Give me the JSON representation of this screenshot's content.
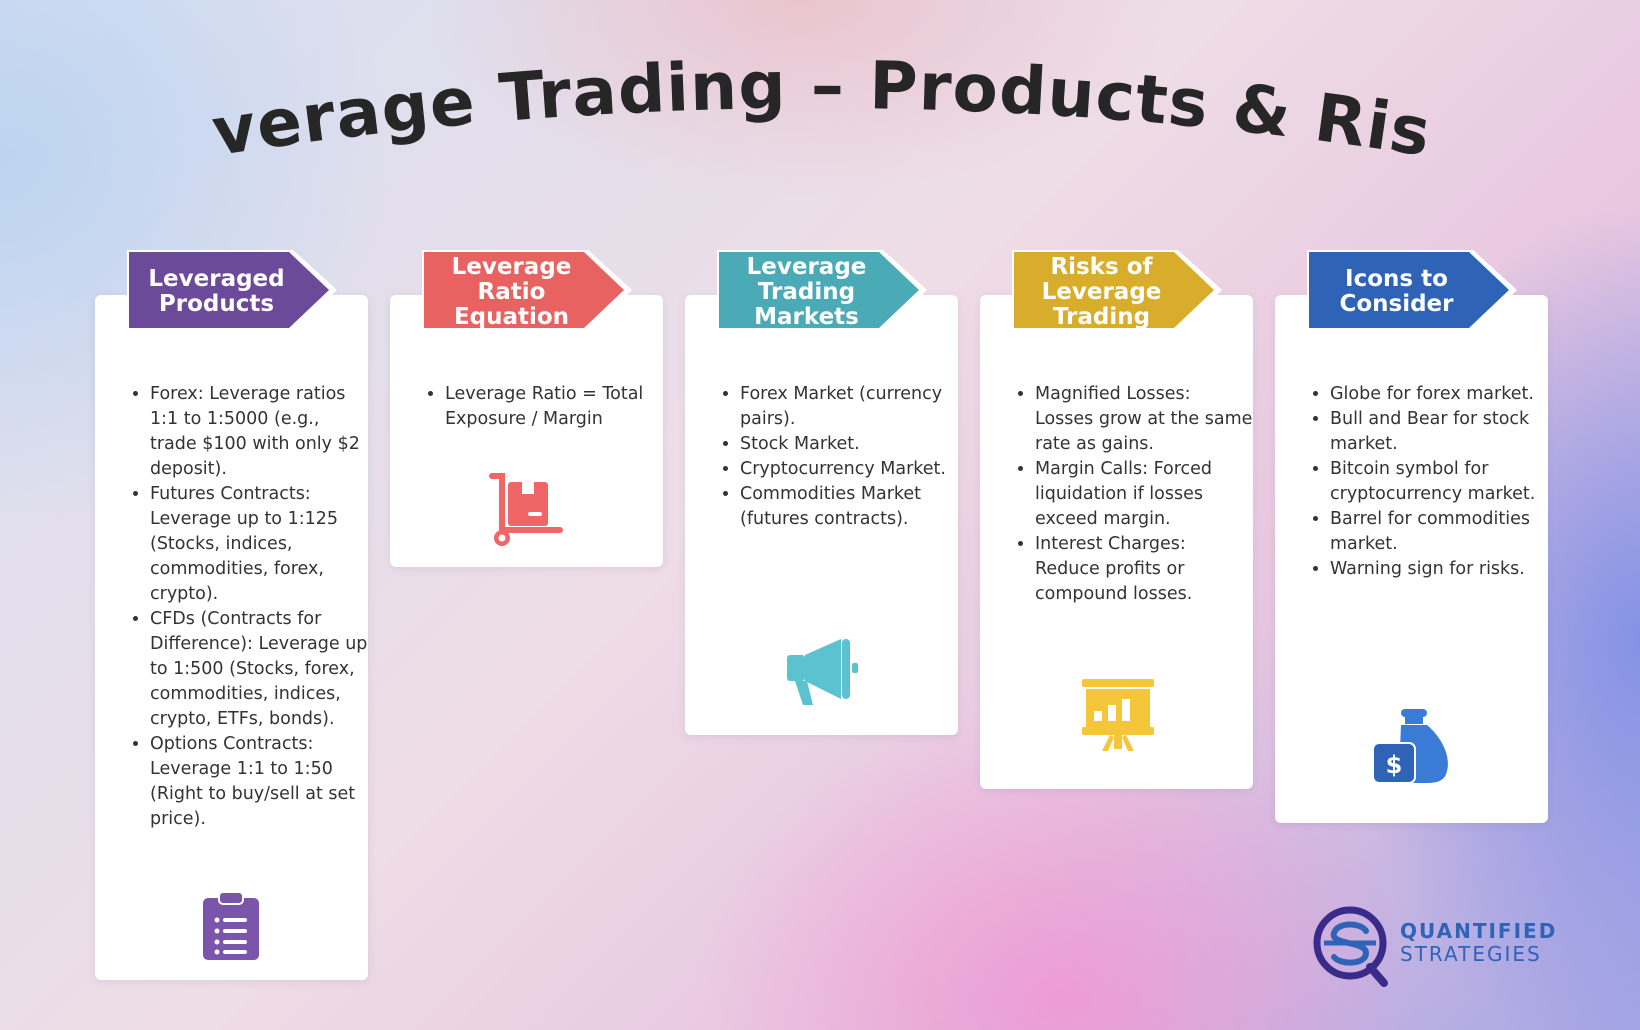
{
  "title": "Leverage Trading – Products & Risks",
  "cards": [
    {
      "header": "Leveraged\nProducts",
      "color": "#6b4a9a",
      "icon": "clipboard-icon",
      "items": [
        "Forex: Leverage ratios 1:1 to 1:5000 (e.g., trade $100 with only $2 deposit).",
        "Futures Contracts: Leverage up to 1:125 (Stocks, indices, commodities, forex, crypto).",
        "CFDs (Contracts for Difference): Leverage up to 1:500 (Stocks, forex, commodities, indices, crypto, ETFs, bonds).",
        "Options Contracts: Leverage 1:1 to 1:50 (Right to buy/sell at set price)."
      ]
    },
    {
      "header": "Leverage\nRatio\nEquation",
      "color": "#e86262",
      "icon": "hand-truck-box-icon",
      "items": [
        "Leverage Ratio = Total Exposure / Margin"
      ]
    },
    {
      "header": "Leverage\nTrading\nMarkets",
      "color": "#4aaab5",
      "icon": "megaphone-icon",
      "items": [
        "Forex Market (currency pairs).",
        "Stock Market.",
        "Cryptocurrency Market.",
        "Commodities Market (futures contracts)."
      ]
    },
    {
      "header": "Risks of\nLeverage\nTrading",
      "color": "#d9ad2c",
      "icon": "presentation-chart-icon",
      "items": [
        "Magnified Losses: Losses grow at the same rate as gains.",
        "Margin Calls: Forced liquidation if losses exceed margin.",
        "Interest Charges: Reduce profits or compound losses."
      ]
    },
    {
      "header": "Icons to\nConsider",
      "color": "#2e63b8",
      "icon": "money-bag-icon",
      "items": [
        "Globe for forex market.",
        "Bull and Bear for stock market.",
        "Bitcoin symbol for cryptocurrency market.",
        "Barrel for commodities market.",
        "Warning sign for risks."
      ]
    }
  ],
  "logo": {
    "line1": "QUANTIFIED",
    "line2": "STRATEGIES"
  }
}
